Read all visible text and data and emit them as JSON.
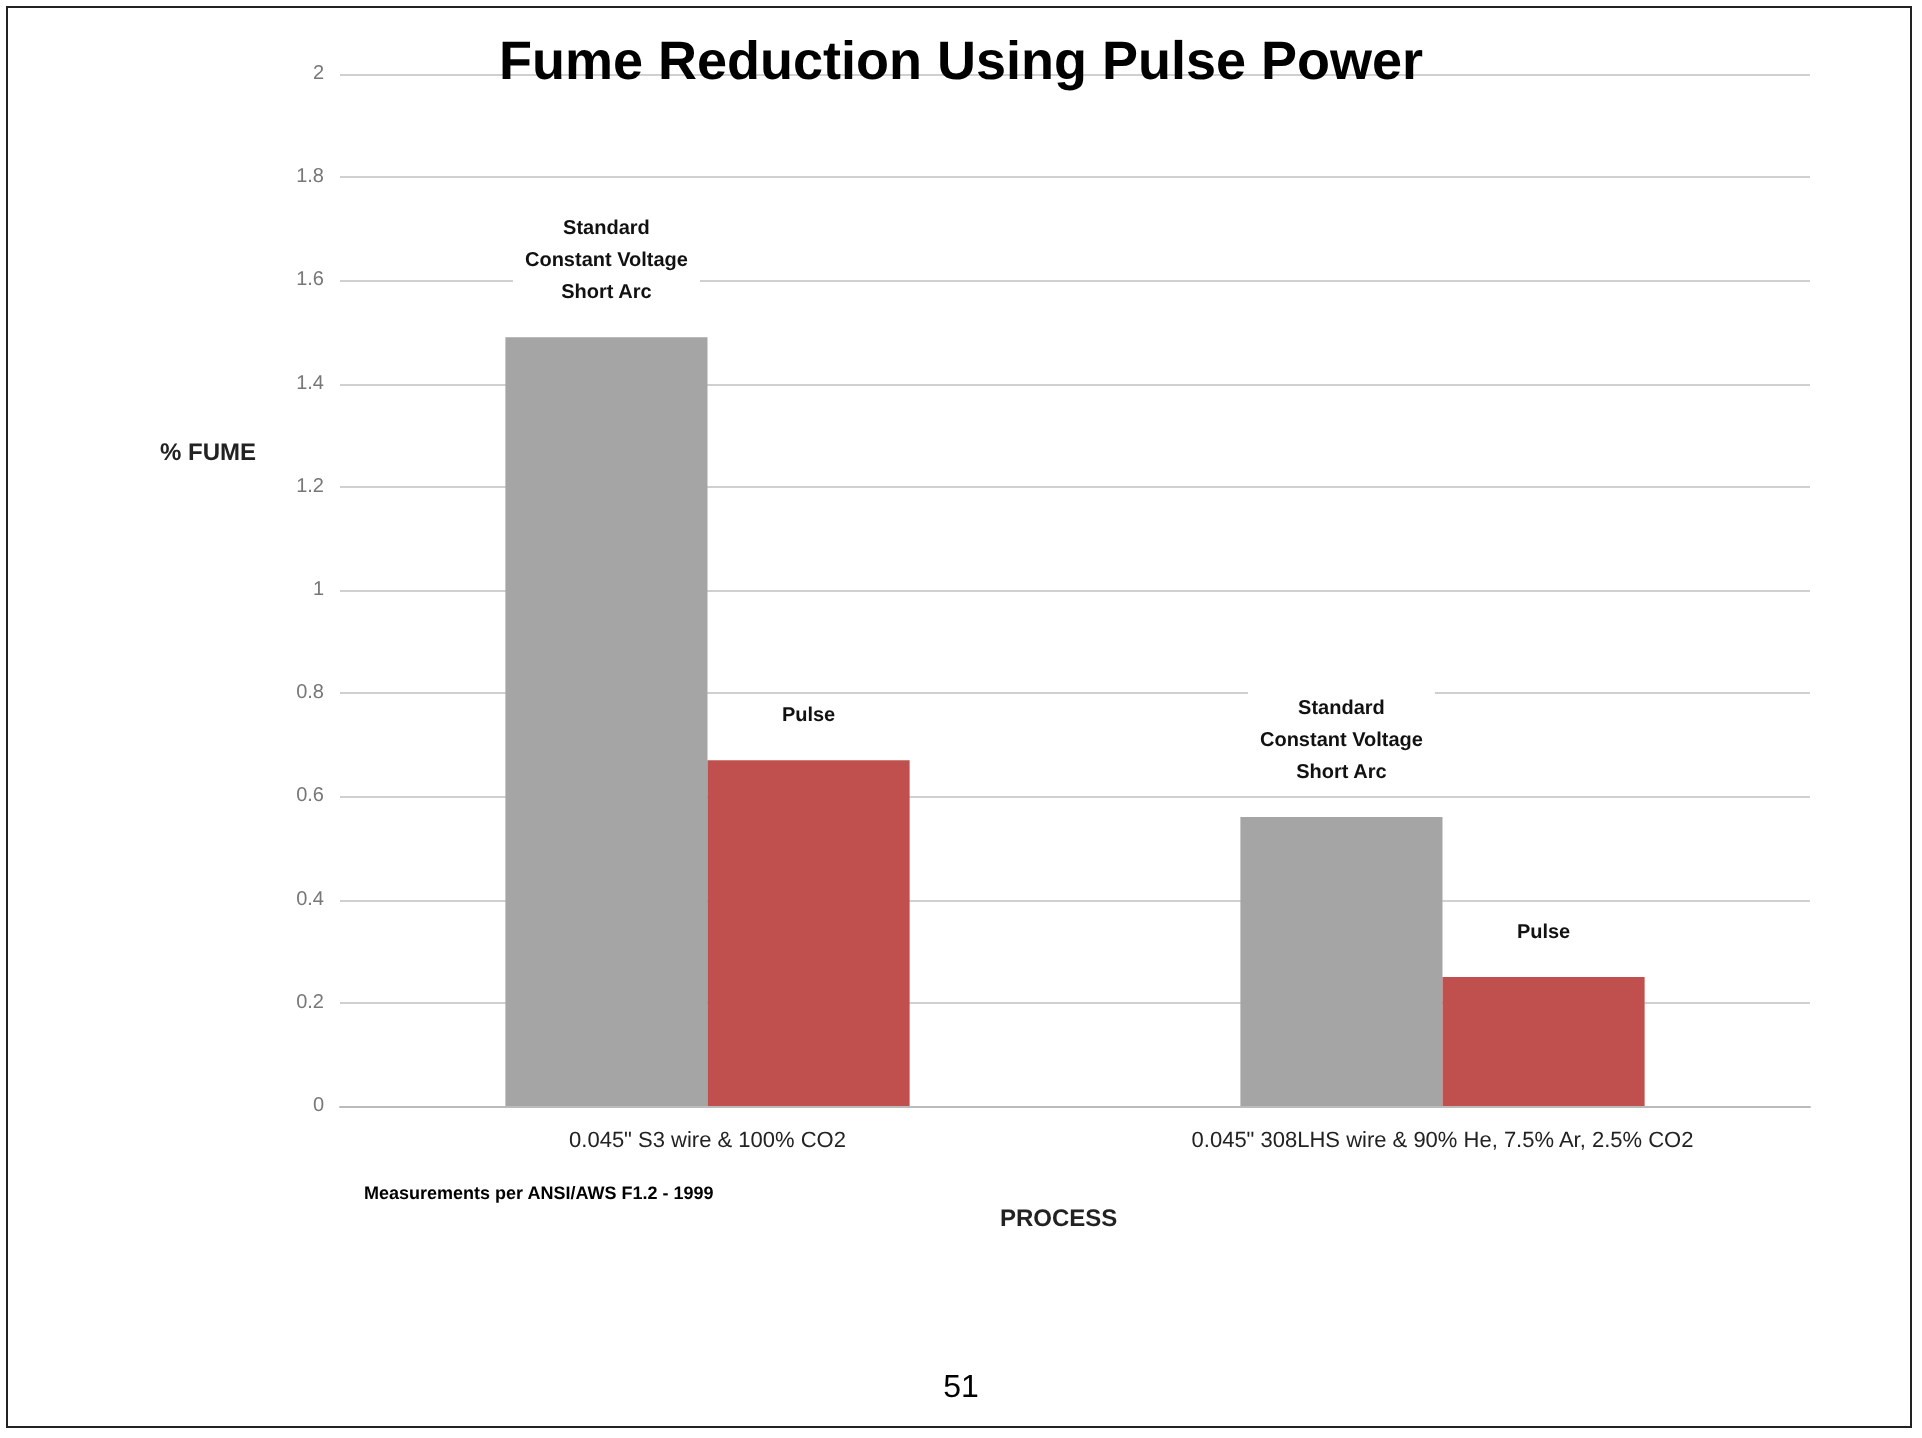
{
  "chart_data": {
    "type": "bar",
    "title": "Fume Reduction Using Pulse Power",
    "xlabel": "PROCESS",
    "ylabel": "% FUME",
    "categories": [
      "0.045\" S3 wire & 100% CO2",
      "0.045\" 308LHS wire & 90% He, 7.5% Ar, 2.5% CO2"
    ],
    "series": [
      {
        "color": "#a5a5a5",
        "values": [
          1.49,
          0.56
        ]
      },
      {
        "color": "#c0504d",
        "values": [
          0.67,
          0.25
        ]
      }
    ],
    "ylim": [
      0,
      2
    ],
    "yticks": [
      0,
      0.2,
      0.4,
      0.6,
      0.8,
      1,
      1.2,
      1.4,
      1.6,
      1.8,
      2
    ],
    "grid": "y",
    "annotations": [
      "Standard\nConstant Voltage\nShort Arc",
      "Pulse",
      "Standard\nConstant Voltage\nShort Arc",
      "Pulse",
      "Measurements per ANSI/AWS F1.2 - 1999",
      "51"
    ]
  }
}
